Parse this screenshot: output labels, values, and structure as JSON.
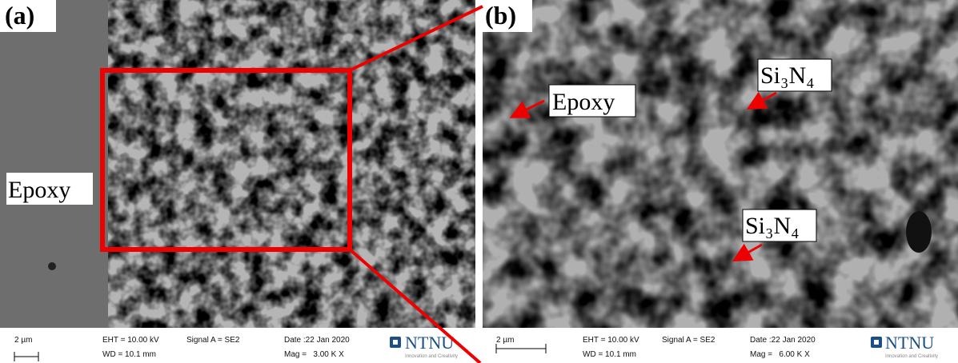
{
  "panels": [
    {
      "label": "(a)",
      "annotations": [
        "Epoxy"
      ],
      "info": {
        "scale": "2 µm",
        "eht": "EHT = 10.00 kV",
        "wd": "WD = 10.1 mm",
        "signal": "Signal A = SE2",
        "date": "Date :22 Jan 2020",
        "mag": "Mag =   3.00 K X",
        "logo": "NTNU",
        "tagline": "Innovation and Creativity"
      }
    },
    {
      "label": "(b)",
      "annotations": [
        "Epoxy",
        "Si₃N₄",
        "Si₃N₄"
      ],
      "info": {
        "scale": "2 µm",
        "eht": "EHT = 10.00 kV",
        "wd": "WD = 10.1 mm",
        "signal": "Signal A = SE2",
        "date": "Date :22 Jan 2020",
        "mag": "Mag =   6.00 K X",
        "logo": "NTNU",
        "tagline": "Innovation and Creativity"
      }
    }
  ]
}
